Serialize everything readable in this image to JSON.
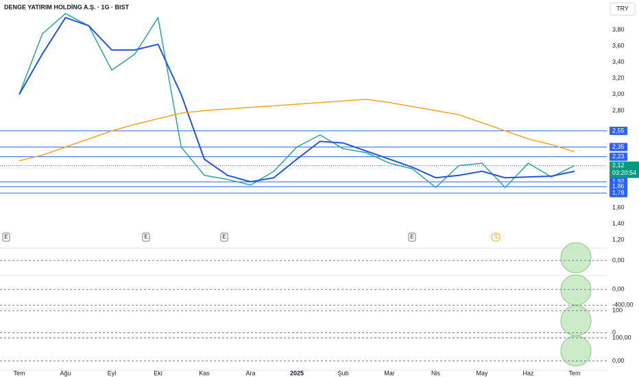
{
  "chart_data": {
    "type": "line",
    "title": "DENGE YATIRIM HOLDİNG A.Ş. · 1G · BIST",
    "currency": "TRY",
    "categories": [
      "Tem",
      null,
      "Ağu",
      null,
      "Eyl",
      null,
      "Eki",
      null,
      "Kas",
      null,
      "Ara",
      null,
      "2025",
      null,
      "Şub",
      null,
      "Mar",
      null,
      "Nis",
      null,
      "May",
      null,
      "Haz",
      null,
      "Tem"
    ],
    "series": [
      {
        "color": "#26a69a",
        "values": [
          3.0,
          3.75,
          4.0,
          3.85,
          3.3,
          3.5,
          3.95,
          2.35,
          2.0,
          1.95,
          1.88,
          2.05,
          2.35,
          2.5,
          2.33,
          2.28,
          2.15,
          2.08,
          1.85,
          2.12,
          2.15,
          1.85,
          2.15,
          1.98,
          2.12
        ]
      },
      {
        "color": "#1e53e5",
        "values": [
          3.0,
          3.5,
          3.95,
          3.85,
          3.55,
          3.55,
          3.62,
          3.0,
          2.2,
          2.0,
          1.92,
          1.97,
          2.2,
          2.42,
          2.4,
          2.3,
          2.2,
          2.1,
          1.97,
          2.0,
          2.05,
          1.97,
          1.98,
          1.99,
          2.05
        ]
      },
      {
        "color": "#f7a21b",
        "values": [
          2.18,
          2.25,
          2.35,
          2.45,
          2.55,
          2.63,
          2.7,
          2.77,
          2.8,
          2.82,
          2.84,
          2.86,
          2.88,
          2.9,
          2.92,
          2.94,
          2.9,
          2.85,
          2.8,
          2.75,
          2.65,
          2.55,
          2.45,
          2.38,
          2.29
        ]
      }
    ],
    "ylim": [
      1.1,
      4.1
    ],
    "yticks": [
      {
        "value": 3.8,
        "label": "3,80"
      },
      {
        "value": 3.6,
        "label": "3,60"
      },
      {
        "value": 3.4,
        "label": "3,40"
      },
      {
        "value": 3.2,
        "label": "3,20"
      },
      {
        "value": 3.0,
        "label": "3,00"
      },
      {
        "value": 2.8,
        "label": "2,80"
      },
      {
        "value": 1.6,
        "label": "1,60"
      },
      {
        "value": 1.4,
        "label": "1,40"
      },
      {
        "value": 1.2,
        "label": "1,20"
      }
    ],
    "levels": [
      {
        "value": 2.55,
        "label": "2,55"
      },
      {
        "value": 2.35,
        "label": "2,35"
      },
      {
        "value": 2.23,
        "label": "2,23"
      },
      {
        "value": 1.92,
        "label": "1,92"
      },
      {
        "value": 1.86,
        "label": "1,86"
      },
      {
        "value": 1.78,
        "label": "1,78"
      }
    ],
    "level_color": "#2962ff",
    "last_price": {
      "value": 2.12,
      "label": "2,12",
      "countdown": "03:20:54",
      "color": "#089981"
    },
    "events": [
      "E",
      "E",
      "E",
      "E",
      "S"
    ],
    "panels": [
      {
        "ylim": [
          -1,
          1
        ],
        "yticks": [
          {
            "value": 0,
            "label": "0,00"
          }
        ]
      },
      {
        "ylim": [
          -500,
          300
        ],
        "yticks": [
          {
            "value": 0,
            "label": "0,00"
          },
          {
            "value": -400,
            "label": "-400,00"
          }
        ]
      },
      {
        "ylim": [
          -20,
          110
        ],
        "yticks": [
          100,
          0
        ]
      },
      {
        "ylim": [
          -40,
          103
        ],
        "yticks": [
          {
            "value": 100,
            "label": "100,00"
          },
          {
            "value": 0,
            "label": "0,00"
          }
        ]
      }
    ]
  }
}
